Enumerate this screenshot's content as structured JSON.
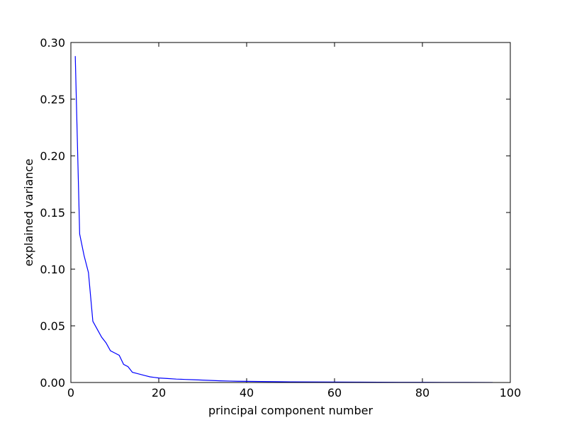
{
  "chart_data": {
    "type": "line",
    "title": "",
    "xlabel": "principal component number",
    "ylabel": "explained variance",
    "xlim": [
      0,
      100
    ],
    "ylim": [
      0,
      0.3
    ],
    "xticks": [
      0,
      20,
      40,
      60,
      80,
      100
    ],
    "yticks": [
      0.0,
      0.05,
      0.1,
      0.15,
      0.2,
      0.25,
      0.3
    ],
    "xtick_labels": [
      "0",
      "20",
      "40",
      "60",
      "80",
      "100"
    ],
    "ytick_labels": [
      "0.00",
      "0.05",
      "0.10",
      "0.15",
      "0.20",
      "0.25",
      "0.30"
    ],
    "grid": false,
    "legend": "none",
    "series": [
      {
        "color": "#0000ff",
        "x": [
          1,
          2,
          3,
          4,
          5,
          6,
          7,
          8,
          9,
          10,
          11,
          12,
          13,
          14,
          15,
          16,
          17,
          18,
          19,
          20,
          22,
          24,
          26,
          28,
          30,
          32,
          34,
          36,
          38,
          40,
          45,
          50,
          55,
          60,
          65,
          70,
          75,
          80,
          85,
          90,
          96
        ],
        "y": [
          0.288,
          0.131,
          0.112,
          0.097,
          0.054,
          0.047,
          0.04,
          0.035,
          0.028,
          0.026,
          0.024,
          0.016,
          0.014,
          0.009,
          0.008,
          0.007,
          0.006,
          0.005,
          0.0045,
          0.004,
          0.0035,
          0.003,
          0.0027,
          0.0024,
          0.0021,
          0.0018,
          0.0015,
          0.0013,
          0.0011,
          0.001,
          0.0008,
          0.0006,
          0.0005,
          0.0004,
          0.0003,
          0.00025,
          0.0002,
          0.00015,
          0.0001,
          8e-05,
          5e-05
        ]
      }
    ]
  }
}
